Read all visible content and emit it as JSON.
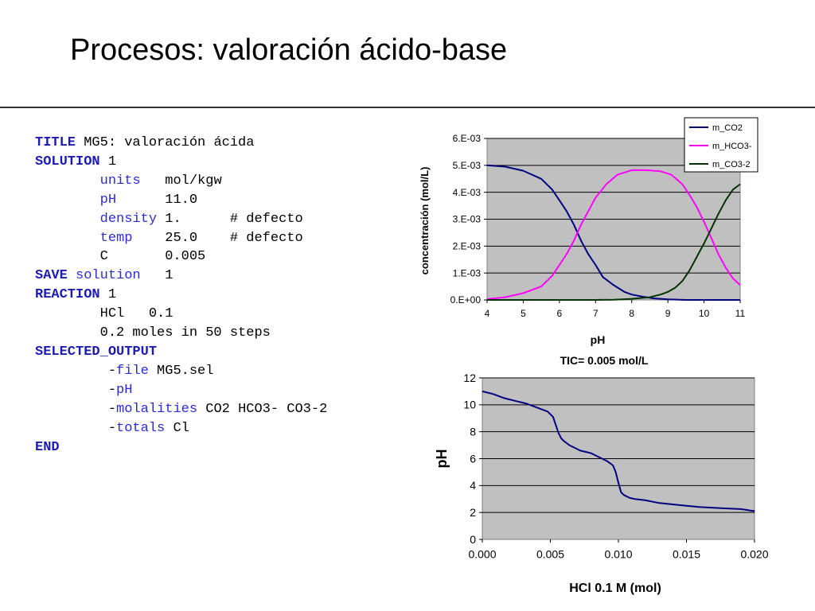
{
  "slide": {
    "title": "Procesos: valoración ácido-base"
  },
  "code_lines": [
    [
      {
        "t": "TITLE",
        "c": "kw"
      },
      {
        "t": " MG5: valoración ácida",
        "c": ""
      }
    ],
    [
      {
        "t": "SOLUTION",
        "c": "kw"
      },
      {
        "t": " 1",
        "c": ""
      }
    ],
    [
      {
        "t": "        ",
        "c": ""
      },
      {
        "t": "units",
        "c": "sub"
      },
      {
        "t": "   mol/kgw",
        "c": ""
      }
    ],
    [
      {
        "t": "        ",
        "c": ""
      },
      {
        "t": "pH",
        "c": "sub"
      },
      {
        "t": "      11.0",
        "c": ""
      }
    ],
    [
      {
        "t": "        ",
        "c": ""
      },
      {
        "t": "density",
        "c": "sub"
      },
      {
        "t": " 1.      # defecto",
        "c": ""
      }
    ],
    [
      {
        "t": "        ",
        "c": ""
      },
      {
        "t": "temp",
        "c": "sub"
      },
      {
        "t": "    25.0    # defecto",
        "c": ""
      }
    ],
    [
      {
        "t": "        C       0.005",
        "c": ""
      }
    ],
    [
      {
        "t": "SAVE",
        "c": "kw"
      },
      {
        "t": " solution",
        "c": "sub"
      },
      {
        "t": "   1",
        "c": ""
      }
    ],
    [
      {
        "t": "REACTION",
        "c": "kw"
      },
      {
        "t": " 1",
        "c": ""
      }
    ],
    [
      {
        "t": "        HCl   0.1",
        "c": ""
      }
    ],
    [
      {
        "t": "        0.2 moles in 50 steps",
        "c": ""
      }
    ],
    [
      {
        "t": "SELECTED_OUTPUT",
        "c": "kw"
      }
    ],
    [
      {
        "t": "         -",
        "c": ""
      },
      {
        "t": "file",
        "c": "sub"
      },
      {
        "t": " MG5.sel",
        "c": ""
      }
    ],
    [
      {
        "t": "         -",
        "c": ""
      },
      {
        "t": "pH",
        "c": "sub"
      }
    ],
    [
      {
        "t": "         -",
        "c": ""
      },
      {
        "t": "molalities",
        "c": "sub"
      },
      {
        "t": " CO2 HCO3- CO3-2",
        "c": ""
      }
    ],
    [
      {
        "t": "         -",
        "c": ""
      },
      {
        "t": "totals",
        "c": "sub"
      },
      {
        "t": " Cl",
        "c": ""
      }
    ],
    [
      {
        "t": "END",
        "c": "kw"
      }
    ]
  ],
  "colors": {
    "keyword": "#1c1cb5",
    "subkeyword": "#2b2bd9",
    "plot_bg": "#c0c0c0",
    "co2": "#000080",
    "hco3": "#ff00ff",
    "co3": "#003300",
    "ph_line": "#000080"
  },
  "chart_data": [
    {
      "type": "line",
      "title": "",
      "xlabel": "pH",
      "ylabel": "concentración (mol/L)",
      "xlim": [
        4,
        11
      ],
      "ylim": [
        0,
        0.006
      ],
      "xticks": [
        "4",
        "5",
        "6",
        "7",
        "8",
        "9",
        "10",
        "11"
      ],
      "yticks": [
        "0.E+00",
        "1.E-03",
        "2.E-03",
        "3.E-03",
        "4.E-03",
        "5.E-03",
        "6.E-03"
      ],
      "grid": true,
      "legend": "top-right",
      "series": [
        {
          "name": "m_CO2",
          "color": "#000080",
          "x": [
            4,
            4.5,
            5,
            5.5,
            5.8,
            6,
            6.2,
            6.4,
            6.6,
            6.8,
            7,
            7.2,
            7.5,
            7.8,
            8,
            8.3,
            8.6,
            9,
            9.5,
            10,
            10.5,
            11
          ],
          "y": [
            0.005,
            0.00495,
            0.0048,
            0.0045,
            0.0041,
            0.0037,
            0.0033,
            0.0028,
            0.0022,
            0.0017,
            0.0013,
            0.00085,
            0.00055,
            0.0003,
            0.0002,
            0.00012,
            6e-05,
            2e-05,
            0,
            0,
            0,
            0
          ]
        },
        {
          "name": "m_HCO3-",
          "color": "#ff00ff",
          "x": [
            4,
            4.5,
            5,
            5.5,
            5.8,
            6,
            6.2,
            6.4,
            6.6,
            6.8,
            7,
            7.3,
            7.6,
            8,
            8.4,
            8.8,
            9.1,
            9.4,
            9.6,
            9.8,
            10,
            10.2,
            10.4,
            10.6,
            10.8,
            11
          ],
          "y": [
            3e-05,
            0.0001,
            0.00025,
            0.0005,
            0.0009,
            0.0013,
            0.0017,
            0.0022,
            0.0028,
            0.0033,
            0.0038,
            0.0043,
            0.00465,
            0.00482,
            0.00482,
            0.00478,
            0.00465,
            0.0043,
            0.0039,
            0.00345,
            0.0029,
            0.0023,
            0.0017,
            0.0012,
            0.0008,
            0.00055
          ]
        },
        {
          "name": "m_CO3-2",
          "color": "#003300",
          "x": [
            4,
            5,
            6,
            7,
            7.5,
            8,
            8.5,
            8.8,
            9,
            9.2,
            9.4,
            9.6,
            9.8,
            10,
            10.2,
            10.4,
            10.6,
            10.8,
            11
          ],
          "y": [
            0,
            0,
            0,
            0,
            1e-05,
            4e-05,
            0.0001,
            0.0002,
            0.0003,
            0.00045,
            0.0007,
            0.0011,
            0.0016,
            0.0021,
            0.00265,
            0.0032,
            0.0037,
            0.0041,
            0.0043
          ]
        }
      ]
    },
    {
      "type": "line",
      "title": "TIC= 0.005 mol/L",
      "xlabel": "HCl 0.1 M  (mol)",
      "ylabel": "pH",
      "xlim": [
        0,
        0.02
      ],
      "ylim": [
        0,
        12
      ],
      "xticks": [
        "0.000",
        "0.005",
        "0.010",
        "0.015",
        "0.020"
      ],
      "yticks": [
        "0",
        "2",
        "4",
        "6",
        "8",
        "10",
        "12"
      ],
      "grid": true,
      "series": [
        {
          "name": "",
          "color": "#000080",
          "x": [
            0,
            0.0008,
            0.0016,
            0.0024,
            0.0032,
            0.004,
            0.0048,
            0.0052,
            0.0054,
            0.0056,
            0.0058,
            0.006,
            0.0064,
            0.0068,
            0.0072,
            0.0076,
            0.008,
            0.0084,
            0.0088,
            0.0092,
            0.0096,
            0.0098,
            0.01,
            0.0102,
            0.0104,
            0.0108,
            0.0112,
            0.012,
            0.013,
            0.014,
            0.015,
            0.016,
            0.017,
            0.018,
            0.019,
            0.02
          ],
          "y": [
            11.0,
            10.8,
            10.5,
            10.3,
            10.1,
            9.8,
            9.5,
            9.1,
            8.5,
            7.9,
            7.5,
            7.3,
            7.0,
            6.8,
            6.6,
            6.5,
            6.4,
            6.2,
            6.0,
            5.8,
            5.5,
            5.0,
            4.2,
            3.5,
            3.3,
            3.1,
            3.0,
            2.9,
            2.7,
            2.6,
            2.5,
            2.4,
            2.35,
            2.3,
            2.25,
            2.1
          ]
        }
      ]
    }
  ]
}
